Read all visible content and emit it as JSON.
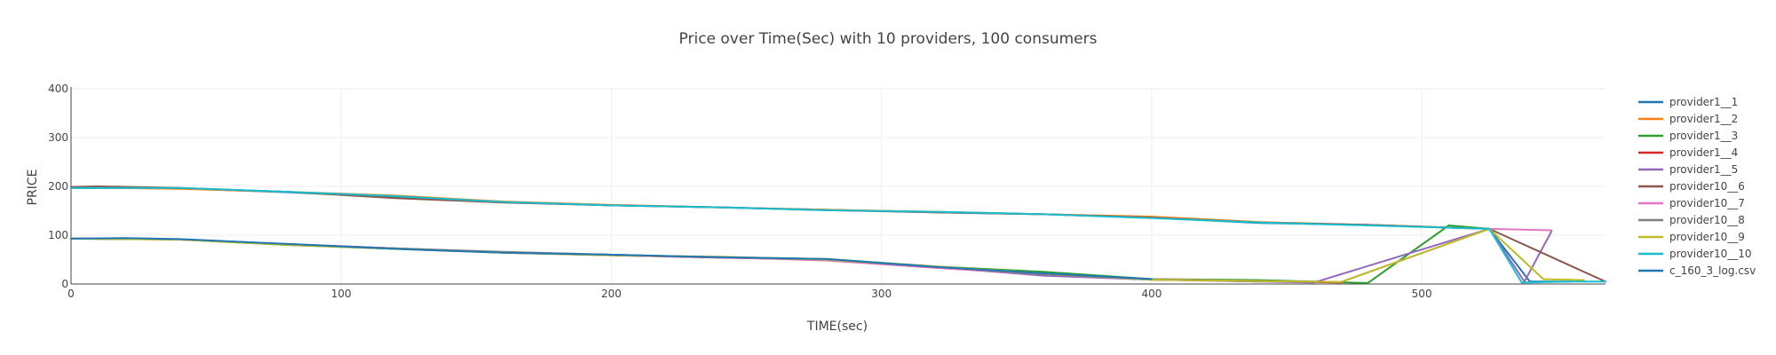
{
  "chart_data": {
    "type": "line",
    "title": "Price over Time(Sec) with 10 providers, 100 consumers",
    "xlabel": "TIME(sec)",
    "ylabel": "PRICE",
    "xlim": [
      0,
      568
    ],
    "ylim": [
      0,
      400
    ],
    "xticks": [
      0,
      100,
      200,
      300,
      400,
      500
    ],
    "yticks": [
      0,
      100,
      200,
      300,
      400
    ],
    "grid": true,
    "legend_position": "right",
    "series": [
      {
        "name": "provider1__1",
        "color": "#1f77b4",
        "x": [
          0,
          40,
          80,
          120,
          160,
          200,
          240,
          280,
          320,
          360,
          400,
          440,
          480,
          525,
          540,
          555
        ],
        "y": [
          197,
          196,
          188,
          178,
          168,
          161,
          157,
          152,
          147,
          143,
          136,
          125,
          121,
          113,
          5,
          5
        ]
      },
      {
        "name": "provider1__2",
        "color": "#ff7f0e",
        "x": [
          0,
          40,
          80,
          120,
          160,
          200,
          240,
          280,
          320,
          360,
          400,
          440,
          480,
          525
        ],
        "y": [
          198,
          195,
          189,
          181,
          169,
          162,
          157,
          152,
          148,
          143,
          138,
          127,
          121,
          113
        ]
      },
      {
        "name": "provider1__3",
        "color": "#2ca02c",
        "x": [
          0,
          20,
          40,
          80,
          120,
          160,
          200,
          240,
          280,
          320,
          360,
          400,
          440,
          480,
          510,
          525
        ],
        "y": [
          93,
          93,
          91,
          80,
          72,
          64,
          59,
          55,
          51,
          36,
          25,
          10,
          8,
          2,
          120,
          113
        ]
      },
      {
        "name": "provider1__4",
        "color": "#d62728",
        "x": [
          0,
          10,
          40,
          80,
          120,
          160,
          200,
          240,
          280,
          320,
          360,
          400,
          440,
          470
        ],
        "y": [
          93,
          93,
          91,
          81,
          73,
          65,
          59,
          54,
          50,
          34,
          18,
          9,
          6,
          3
        ]
      },
      {
        "name": "provider1__5",
        "color": "#9467bd",
        "x": [
          0,
          40,
          80,
          120,
          160,
          200,
          240,
          280,
          320,
          360,
          400,
          440,
          460,
          525,
          538,
          548
        ],
        "y": [
          93,
          91,
          82,
          73,
          65,
          60,
          54,
          50,
          35,
          17,
          9,
          5,
          3,
          113,
          5,
          108
        ]
      },
      {
        "name": "provider10__6",
        "color": "#8c564b",
        "x": [
          0,
          10,
          40,
          80,
          120,
          160,
          200,
          240,
          280,
          320,
          360,
          400,
          440,
          480,
          525,
          568
        ],
        "y": [
          199,
          200,
          197,
          189,
          176,
          167,
          161,
          157,
          151,
          147,
          143,
          136,
          126,
          121,
          113,
          5
        ]
      },
      {
        "name": "provider10__7",
        "color": "#e377c2",
        "x": [
          0,
          40,
          80,
          120,
          160,
          200,
          240,
          280,
          320,
          360,
          400,
          440,
          470,
          525,
          548
        ],
        "y": [
          93,
          91,
          81,
          73,
          64,
          59,
          55,
          48,
          33,
          20,
          10,
          6,
          4,
          113,
          110
        ]
      },
      {
        "name": "provider10__8",
        "color": "#7f7f7f",
        "x": [
          0,
          40,
          80,
          120,
          160,
          200,
          240,
          280,
          320,
          360,
          400,
          440
        ],
        "y": [
          93,
          91,
          81,
          73,
          66,
          60,
          55,
          50,
          35,
          20,
          10,
          5
        ]
      },
      {
        "name": "provider10__9",
        "color": "#bcbd22",
        "x": [
          0,
          40,
          80,
          120,
          160,
          200,
          240,
          280,
          320,
          360,
          400,
          440,
          470,
          525,
          545,
          560
        ],
        "y": [
          93,
          91,
          80,
          72,
          64,
          59,
          56,
          50,
          36,
          22,
          9,
          6,
          4,
          113,
          10,
          8
        ]
      },
      {
        "name": "provider10__10",
        "color": "#17becf",
        "x": [
          0,
          40,
          80,
          120,
          160,
          200,
          240,
          280,
          320,
          360,
          400,
          440,
          480,
          525,
          537,
          555,
          568
        ],
        "y": [
          197,
          197,
          189,
          180,
          168,
          161,
          157,
          151,
          148,
          143,
          135,
          126,
          120,
          113,
          3,
          5,
          5
        ]
      },
      {
        "name": "c_160_3_log.csv",
        "color": "#1f77b4",
        "x": [
          0,
          20,
          40,
          80,
          120,
          160,
          200,
          240,
          280,
          320,
          360,
          400
        ],
        "y": [
          93,
          94,
          92,
          82,
          72,
          64,
          60,
          55,
          51,
          35,
          22,
          10
        ]
      }
    ]
  }
}
